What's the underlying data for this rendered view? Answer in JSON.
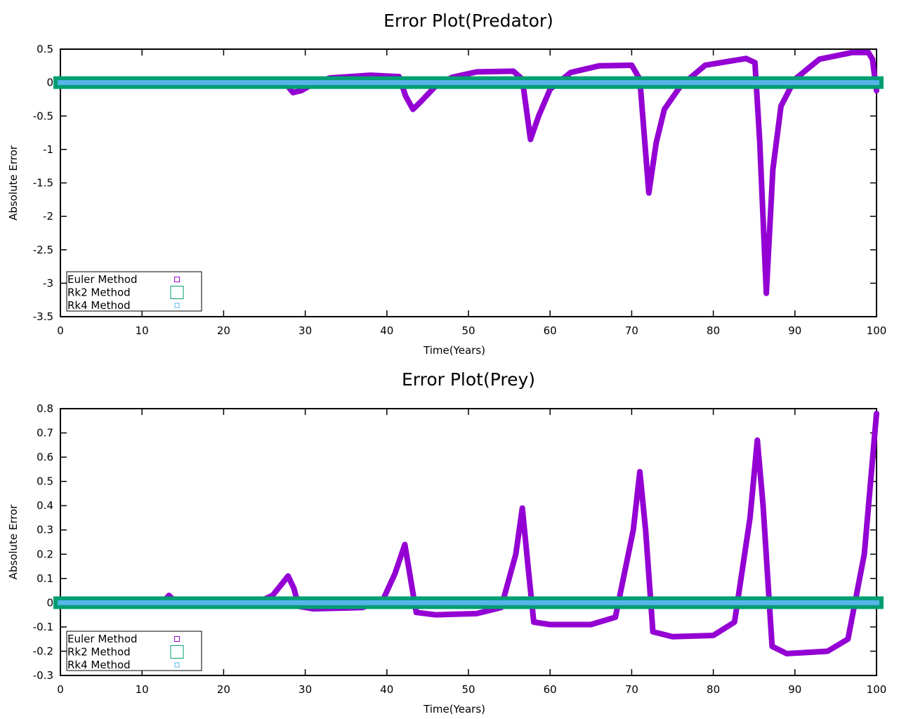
{
  "chart_data": [
    {
      "type": "line",
      "title": "Error Plot(Predator)",
      "xlabel": "Time(Years)",
      "ylabel": "Absolute Error",
      "xlim": [
        0,
        100
      ],
      "ylim": [
        -3.5,
        0.5
      ],
      "xticks": [
        "0",
        "10",
        "20",
        "30",
        "40",
        "50",
        "60",
        "70",
        "80",
        "90",
        "100"
      ],
      "yticks": [
        "0.5",
        "0",
        "-0.5",
        "-1",
        "-1.5",
        "-2",
        "-2.5",
        "-3",
        "-3.5"
      ],
      "grid": false,
      "legend_position": "bottom-left",
      "series": [
        {
          "name": "Euler Method",
          "color": "#9400d3",
          "x": [
            0,
            27.5,
            28.5,
            29.5,
            31,
            33,
            38,
            41.5,
            42.3,
            43.2,
            44.2,
            46,
            48,
            51,
            55.5,
            56.6,
            57.6,
            58.6,
            60,
            62.5,
            66,
            70,
            71,
            72.1,
            73,
            74,
            76,
            79,
            84,
            85.1,
            85.7,
            86.5,
            87.3,
            88.3,
            90,
            93,
            97,
            99,
            99.5,
            100
          ],
          "values": [
            0,
            0,
            -0.15,
            -0.12,
            -0.02,
            0.07,
            0.11,
            0.09,
            -0.2,
            -0.4,
            -0.28,
            -0.05,
            0.08,
            0.16,
            0.17,
            0.05,
            -0.85,
            -0.5,
            -0.1,
            0.15,
            0.25,
            0.26,
            0.05,
            -1.65,
            -0.9,
            -0.4,
            -0.05,
            0.26,
            0.36,
            0.3,
            -0.9,
            -3.15,
            -1.3,
            -0.35,
            0.05,
            0.35,
            0.45,
            0.45,
            0.35,
            -0.12
          ]
        },
        {
          "name": "Rk2 Method",
          "color": "#009e73",
          "x": [
            0,
            100
          ],
          "values": [
            0,
            0
          ]
        },
        {
          "name": "Rk4 Method",
          "color": "#56b4e9",
          "x": [
            0,
            100
          ],
          "values": [
            0,
            0
          ]
        }
      ]
    },
    {
      "type": "line",
      "title": "Error Plot(Prey)",
      "xlabel": "Time(Years)",
      "ylabel": "Absolute Error",
      "xlim": [
        0,
        100
      ],
      "ylim": [
        -0.3,
        0.8
      ],
      "xticks": [
        "0",
        "10",
        "20",
        "30",
        "40",
        "50",
        "60",
        "70",
        "80",
        "90",
        "100"
      ],
      "yticks": [
        "0.8",
        "0.7",
        "0.6",
        "0.5",
        "0.4",
        "0.3",
        "0.2",
        "0.1",
        "0",
        "-0.1",
        "-0.2",
        "-0.3"
      ],
      "grid": false,
      "legend_position": "bottom-left",
      "series": [
        {
          "name": "Euler Method",
          "color": "#9400d3",
          "x": [
            0,
            12.5,
            13.3,
            14.2,
            24,
            26,
            27.2,
            27.9,
            28.6,
            29.2,
            31,
            37,
            39.5,
            41,
            42.2,
            42.9,
            43.6,
            46,
            51,
            54,
            55.8,
            56.6,
            57.3,
            58,
            60,
            65,
            68,
            70.2,
            71,
            71.7,
            72.6,
            75,
            80,
            82.6,
            84.5,
            85.4,
            86.1,
            87.2,
            89,
            94,
            96.5,
            98.5,
            100
          ],
          "values": [
            0,
            0,
            0.03,
            0,
            0,
            0.03,
            0.08,
            0.11,
            0.06,
            -0.015,
            -0.025,
            -0.02,
            0.01,
            0.12,
            0.24,
            0.1,
            -0.04,
            -0.05,
            -0.045,
            -0.02,
            0.2,
            0.39,
            0.15,
            -0.08,
            -0.09,
            -0.09,
            -0.06,
            0.3,
            0.54,
            0.3,
            -0.12,
            -0.14,
            -0.135,
            -0.08,
            0.35,
            0.67,
            0.4,
            -0.18,
            -0.21,
            -0.2,
            -0.15,
            0.2,
            0.78
          ]
        },
        {
          "name": "Rk2 Method",
          "color": "#009e73",
          "x": [
            0,
            100
          ],
          "values": [
            0,
            0
          ]
        },
        {
          "name": "Rk4 Method",
          "color": "#56b4e9",
          "x": [
            0,
            100
          ],
          "values": [
            0,
            0
          ]
        }
      ]
    }
  ]
}
